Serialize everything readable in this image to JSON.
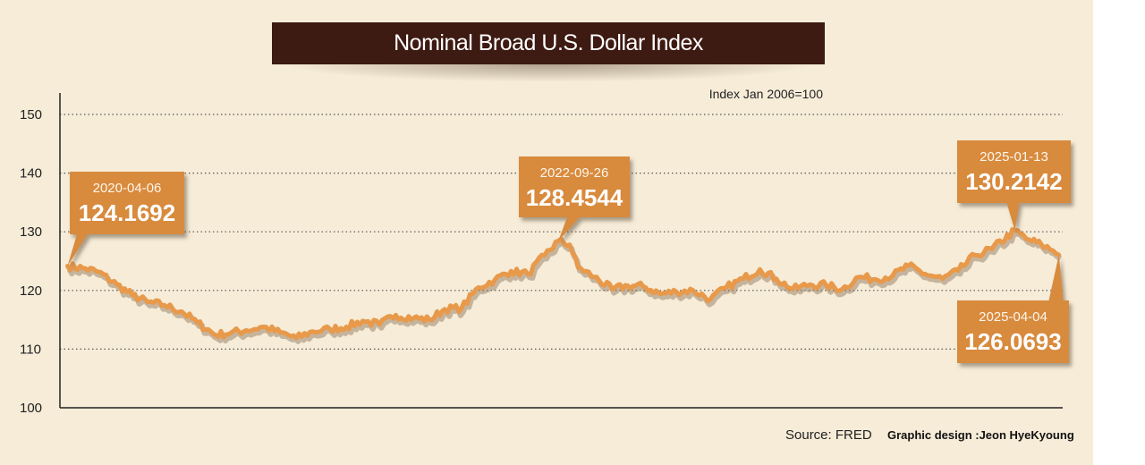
{
  "chart_data": {
    "type": "line",
    "title": "Nominal Broad U.S. Dollar Index",
    "unit_note": "Index Jan 2006=100",
    "ylim": [
      100,
      150
    ],
    "yticks": [
      150,
      140,
      130,
      120,
      110,
      100
    ],
    "xlim": [
      "2020-03-23",
      "2025-04-11"
    ],
    "grid": "horizontal dotted",
    "colors": {
      "line": "#e8994a",
      "callout": "#d88a3e",
      "title_bg": "#3d1a12",
      "panel": "#f6ecd8"
    },
    "series": [
      {
        "x": [
          "2020-04-06",
          "2020-05-04",
          "2020-06-01",
          "2020-07-06",
          "2020-08-03",
          "2020-09-01",
          "2020-10-01",
          "2020-11-02",
          "2020-12-01",
          "2021-01-04",
          "2021-02-01",
          "2021-03-01",
          "2021-04-01",
          "2021-05-03",
          "2021-06-01",
          "2021-07-01",
          "2021-08-02",
          "2021-09-01",
          "2021-10-01",
          "2021-11-01",
          "2021-12-01",
          "2022-01-03",
          "2022-02-01",
          "2022-03-01",
          "2022-04-01",
          "2022-05-02",
          "2022-06-01",
          "2022-07-01",
          "2022-08-01",
          "2022-09-01",
          "2022-09-26",
          "2022-10-17",
          "2022-11-01",
          "2022-12-01",
          "2023-01-03",
          "2023-02-01",
          "2023-03-01",
          "2023-04-03",
          "2023-05-01",
          "2023-06-01",
          "2023-07-03",
          "2023-08-01",
          "2023-09-01",
          "2023-10-02",
          "2023-11-01",
          "2023-12-01",
          "2024-01-02",
          "2024-02-01",
          "2024-03-01",
          "2024-04-01",
          "2024-05-01",
          "2024-06-03",
          "2024-07-01",
          "2024-08-01",
          "2024-09-02",
          "2024-10-01",
          "2024-11-01",
          "2024-12-02",
          "2025-01-13",
          "2025-02-03",
          "2025-03-03",
          "2025-03-24",
          "2025-04-04"
        ],
        "y": [
          124.1692,
          123.8,
          123.2,
          121.0,
          119.2,
          118.0,
          117.5,
          116.4,
          114.5,
          112.4,
          112.8,
          113.2,
          113.8,
          112.8,
          111.9,
          113.0,
          113.4,
          113.8,
          114.8,
          114.2,
          115.8,
          115.3,
          115.0,
          116.8,
          117.0,
          120.5,
          121.8,
          123.3,
          122.8,
          126.0,
          128.4544,
          127.8,
          124.0,
          122.3,
          120.2,
          120.8,
          120.7,
          119.4,
          119.8,
          120.0,
          118.5,
          120.5,
          122.0,
          123.6,
          122.0,
          120.2,
          121.0,
          120.9,
          120.2,
          122.3,
          121.9,
          122.6,
          124.2,
          122.8,
          122.0,
          123.4,
          126.0,
          127.1,
          130.2142,
          128.8,
          127.8,
          126.8,
          126.0693
        ]
      }
    ],
    "annotations": [
      {
        "date": "2020-04-06",
        "value": "124.1692"
      },
      {
        "date": "2022-09-26",
        "value": "128.4544"
      },
      {
        "date": "2025-01-13",
        "value": "130.2142"
      },
      {
        "date": "2025-04-04",
        "value": "126.0693"
      }
    ]
  },
  "footer": {
    "source": "Source: FRED",
    "credit": "Graphic design :Jeon HyeKyoung"
  }
}
